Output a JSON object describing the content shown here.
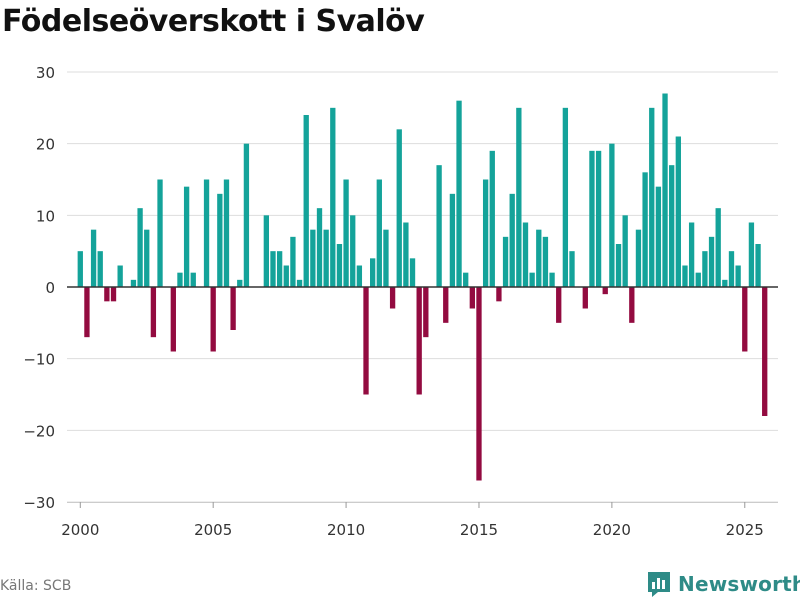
{
  "title": "Födelseöverskott i Svalöv",
  "source": "Källa: SCB",
  "brand": "Newsworthy",
  "colors": {
    "positive": "#14a39a",
    "negative": "#930b40",
    "grid": "#dddddd",
    "zero": "#333333",
    "text": "#333333",
    "brand": "#2e8b87"
  },
  "chart_data": {
    "type": "bar",
    "title": "Födelseöverskott i Svalöv",
    "xlabel": "",
    "ylabel": "",
    "ylim": [
      -30,
      30
    ],
    "yticks": [
      30,
      20,
      10,
      0,
      -10,
      -20,
      -30
    ],
    "yticklabels": [
      "30",
      "20",
      "10",
      "0",
      "−10",
      "−20",
      "−30"
    ],
    "xlim": [
      1999.5,
      2026.25
    ],
    "xticks": [
      2000,
      2005,
      2010,
      2015,
      2020,
      2025
    ],
    "xticklabels": [
      "2000",
      "2005",
      "2010",
      "2015",
      "2020",
      "2025"
    ],
    "start_year": 2000,
    "periods_per_year": 4,
    "series": [
      {
        "name": "Födelseöverskott",
        "values": [
          5,
          -7,
          8,
          5,
          -2,
          -2,
          3,
          0,
          1,
          11,
          8,
          -7,
          15,
          0,
          -9,
          2,
          14,
          2,
          0,
          15,
          -9,
          13,
          15,
          -6,
          1,
          20,
          0,
          0,
          10,
          5,
          5,
          3,
          7,
          1,
          24,
          8,
          11,
          8,
          25,
          6,
          15,
          10,
          3,
          -15,
          4,
          15,
          8,
          -3,
          22,
          9,
          4,
          -15,
          -7,
          0,
          17,
          -5,
          13,
          26,
          2,
          -3,
          -27,
          15,
          19,
          -2,
          7,
          13,
          25,
          9,
          2,
          8,
          7,
          2,
          -5,
          25,
          5,
          0,
          -3,
          19,
          19,
          -1,
          20,
          6,
          10,
          -5,
          8,
          16,
          25,
          14,
          27,
          17,
          21,
          3,
          9,
          2,
          5,
          7,
          11,
          1,
          5,
          3,
          -9,
          9,
          6,
          -18
        ]
      }
    ]
  }
}
